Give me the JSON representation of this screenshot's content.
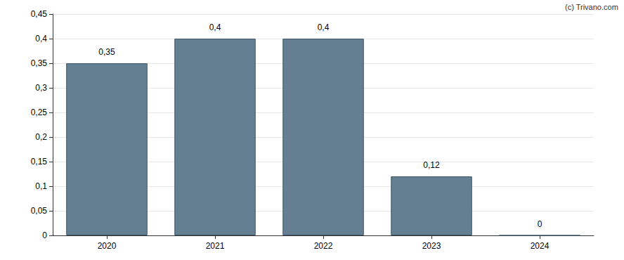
{
  "chart_data": {
    "type": "bar",
    "annotation": "(c) Trivano.com",
    "categories": [
      "2020",
      "2021",
      "2022",
      "2023",
      "2024"
    ],
    "values": [
      0.35,
      0.4,
      0.4,
      0.12,
      0
    ],
    "value_labels": [
      "0,35",
      "0,4",
      "0,4",
      "0,12",
      "0"
    ],
    "data_labels": true,
    "color": "#647f92",
    "ylim": [
      0,
      0.45
    ],
    "yticks": [
      0,
      {
        "value": 0.05,
        "label": "0,05"
      },
      {
        "value": 0.1,
        "label": "0,1"
      },
      {
        "value": 0.15,
        "label": "0,15"
      },
      {
        "value": 0.2,
        "label": "0,2"
      },
      {
        "value": 0.25,
        "label": "0,25"
      },
      {
        "value": 0.3,
        "label": "0,3"
      },
      {
        "value": 0.35,
        "label": "0,35"
      },
      {
        "value": 0.4,
        "label": "0,4"
      },
      {
        "value": 0.45,
        "label": "0,45"
      }
    ],
    "grid": true
  }
}
